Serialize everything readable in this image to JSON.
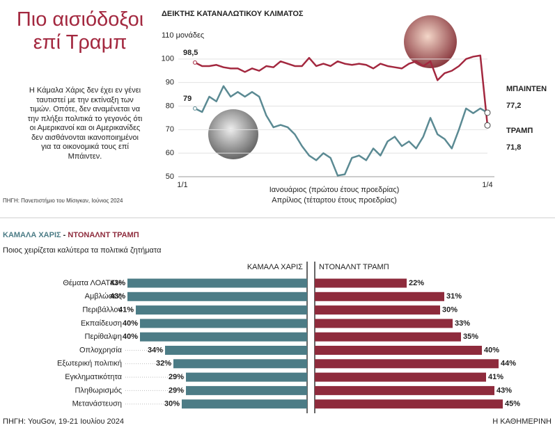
{
  "header": {
    "title": "Πιο αισιόδοξοι επί Τραμπ",
    "body": "Η Κάμαλα Χάρις δεν έχει εν γένει ταυτιστεί με την εκτίναξη των τιμών. Οπότε, δεν αναμένεται να την πλήξει πολιτικά το γεγονός ότι οι Αμερικανοί και οι Αμερικανίδες δεν αισθάνονται ικανοποιημένοι για τα οικονομικά τους επί Μπάιντεν.",
    "source": "ΠΗΓΗ: Πανεπιστήμιο του Μίσιγκαν, Ιούνιος 2024"
  },
  "credit": "Η ΚΑΘΗΜΕΡΙΝΗ",
  "chart_data": [
    {
      "type": "line",
      "title": "ΔΕΙΚΤΗΣ ΚΑΤΑΝΑΛΩΤΙΚΟΥ ΚΛΙΜΑΤΟΣ",
      "x_label": [
        "Ιανουάριος (πρώτου έτους προεδρίας)",
        "Απρίλιος (τέταρτου έτους προεδρίας)"
      ],
      "categories": [
        "1/1",
        null,
        null,
        null,
        null,
        null,
        null,
        null,
        null,
        null,
        null,
        null,
        null,
        null,
        null,
        null,
        null,
        null,
        null,
        null,
        null,
        null,
        null,
        null,
        null,
        null,
        null,
        null,
        null,
        null,
        null,
        null,
        null,
        null,
        null,
        null,
        null,
        null,
        null,
        null,
        null,
        "1/4"
      ],
      "ylim": [
        50,
        110
      ],
      "yticks": [
        50,
        60,
        70,
        80,
        90,
        100,
        {
          "value": 110,
          "label": "110 μονάδες"
        }
      ],
      "grid": true,
      "series": [
        {
          "name": "ΤΡΑΜΠ",
          "color": "#a3283f",
          "values": [
            98.5,
            97,
            97,
            97.5,
            96.5,
            96,
            96,
            94.5,
            96,
            95,
            97,
            96.5,
            99,
            98,
            97,
            97,
            100.5,
            97,
            98,
            97,
            99,
            98,
            97.5,
            98,
            97.5,
            96,
            98,
            97,
            96.5,
            96,
            98,
            99,
            97,
            99,
            91,
            94,
            95,
            97,
            100,
            101,
            101.5,
            71.8
          ],
          "value_labels": [
            "98,5",
            null,
            null,
            null,
            null,
            null,
            null,
            null,
            null,
            null,
            null,
            null,
            null,
            null,
            null,
            null,
            null,
            null,
            null,
            null,
            null,
            null,
            null,
            null,
            null,
            null,
            null,
            null,
            null,
            null,
            null,
            null,
            null,
            null,
            null,
            null,
            null,
            null,
            null,
            null,
            null,
            "71,8"
          ]
        },
        {
          "name": "ΜΠΑΙΝΤΕΝ",
          "color": "#5b8a93",
          "values": [
            79,
            77.5,
            84,
            82,
            88.5,
            84,
            86,
            84,
            86,
            84,
            76,
            71,
            72,
            71,
            68,
            63,
            59,
            57,
            60,
            58,
            50.5,
            51,
            58,
            59,
            57,
            62,
            59,
            65,
            67,
            63,
            65,
            62,
            67,
            75,
            68,
            66,
            62,
            70,
            79,
            77,
            79,
            77.2
          ],
          "value_labels": [
            null,
            null,
            null,
            null,
            null,
            null,
            null,
            null,
            null,
            null,
            null,
            null,
            null,
            null,
            null,
            null,
            null,
            null,
            null,
            null,
            null,
            null,
            null,
            null,
            null,
            null,
            null,
            null,
            null,
            null,
            null,
            null,
            null,
            null,
            null,
            null,
            null,
            null,
            null,
            null,
            null,
            "77,2"
          ]
        }
      ]
    },
    {
      "type": "butterfly",
      "title": "Ποιος χειρίζεται καλύτερα τα πολιτικά ζητήματα",
      "categories": [
        "Θέματα ΛΟΑΤΚΙ+",
        "Αμβλώσεις",
        "Περιβάλλον",
        "Εκπαίδευση",
        "Περίθαλψη",
        "Οπλοχρησία",
        "Εξωτερική πολιτική",
        "Εγκληματικότητα",
        "Πληθωρισμός",
        "Μετανάστευση"
      ],
      "series": [
        {
          "name": "ΚΑΜΑΛΑ ΧΑΡΙΣ",
          "color": "#4c7c86",
          "values": [
            43,
            43,
            41,
            40,
            40,
            34,
            32,
            29,
            29,
            30
          ],
          "value_labels": [
            "43%",
            "43%",
            "41%",
            "40%",
            "40%",
            "34%",
            "32%",
            "29%",
            "29%",
            "30%"
          ]
        },
        {
          "name": "ΝΤΟΝΑΛΝΤ ΤΡΑΜΠ",
          "color": "#8e2b3c",
          "values": [
            22,
            31,
            30,
            33,
            35,
            40,
            44,
            41,
            43,
            45
          ],
          "value_labels": [
            "22%",
            "31%",
            "30%",
            "33%",
            "35%",
            "40%",
            "44%",
            "41%",
            "43%",
            "45%"
          ]
        }
      ],
      "source": "ΠΗΓΗ: YouGov, 19-21 Ιουλίου 2024"
    }
  ]
}
